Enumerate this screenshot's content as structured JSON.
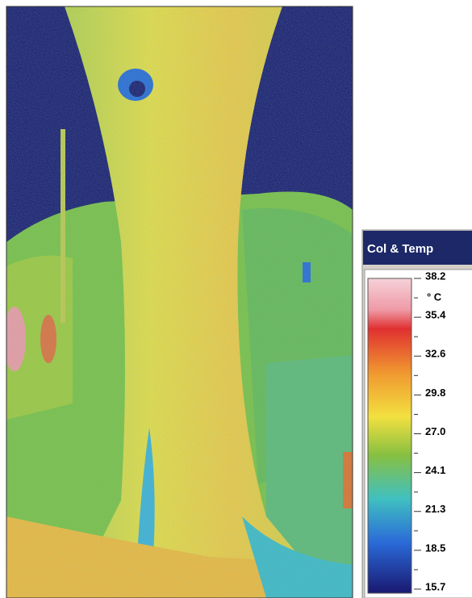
{
  "legend": {
    "title": "Col & Temp",
    "unit": "° C",
    "labels": [
      "38.2",
      "35.4",
      "32.6",
      "29.8",
      "27.0",
      "24.1",
      "21.3",
      "18.5",
      "15.7"
    ]
  }
}
